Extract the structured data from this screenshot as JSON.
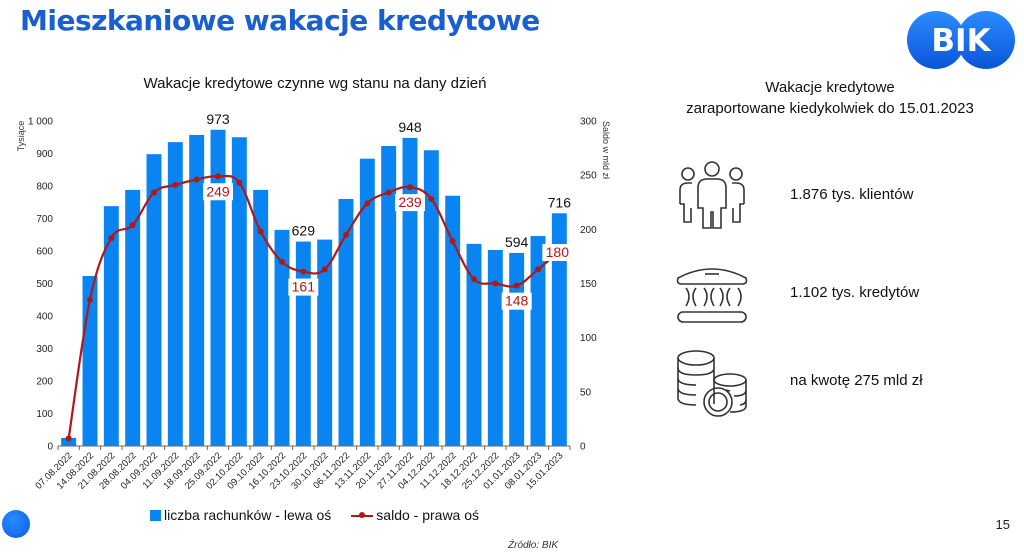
{
  "header": {
    "title": "Mieszkaniowe wakacje kredytowe",
    "logo_text": "BIK"
  },
  "chart_data": {
    "type": "bar+line",
    "title": "Wakacje kredytowe czynne wg stanu na dany dzień",
    "ylabel_left": "Tysiące",
    "ylabel_right": "Saldo w mld zł",
    "ylim_left": [
      0,
      1000
    ],
    "ylim_right": [
      0,
      300
    ],
    "yticks_left": [
      "0",
      "100",
      "200",
      "300",
      "400",
      "500",
      "600",
      "700",
      "800",
      "900",
      "1 000"
    ],
    "yticks_right": [
      "0",
      "50",
      "100",
      "150",
      "200",
      "250",
      "300"
    ],
    "categories": [
      "07.08.2022",
      "14.08.2022",
      "21.08.2022",
      "28.08.2022",
      "04.09.2022",
      "11.09.2022",
      "18.09.2022",
      "25.09.2022",
      "02.10.2022",
      "09.10.2022",
      "16.10.2022",
      "23.10.2022",
      "30.10.2022",
      "06.11.2022",
      "13.11.2022",
      "20.11.2022",
      "27.11.2022",
      "04.12.2022",
      "11.12.2022",
      "18.12.2022",
      "25.12.2022",
      "01.01.2023",
      "08.01.2023",
      "15.01.2023"
    ],
    "series": [
      {
        "name": "liczba rachunków - lewa oś",
        "type": "bar",
        "axis": "left",
        "color": "#0a84f0",
        "values": [
          25,
          523,
          738,
          788,
          898,
          935,
          957,
          973,
          950,
          788,
          665,
          629,
          635,
          760,
          884,
          923,
          948,
          910,
          770,
          622,
          603,
          594,
          646,
          716
        ]
      },
      {
        "name": "saldo - prawa oś",
        "type": "line",
        "axis": "right",
        "color": "#b01818",
        "values": [
          7,
          135,
          192,
          204,
          234,
          241,
          246,
          249,
          243,
          198,
          170,
          161,
          163,
          195,
          224,
          234,
          239,
          228,
          189,
          154,
          150,
          148,
          163,
          180
        ]
      }
    ],
    "bar_labels": [
      {
        "index": 7,
        "text": "973"
      },
      {
        "index": 11,
        "text": "629"
      },
      {
        "index": 16,
        "text": "948"
      },
      {
        "index": 21,
        "text": "594"
      },
      {
        "index": 23,
        "text": "716"
      }
    ],
    "line_labels": [
      {
        "index": 7,
        "text": "249"
      },
      {
        "index": 11,
        "text": "161"
      },
      {
        "index": 16,
        "text": "239"
      },
      {
        "index": 21,
        "text": "148"
      },
      {
        "index": 23,
        "text": "180"
      }
    ],
    "legend_position": "bottom",
    "grid": false
  },
  "summary": {
    "title_line1": "Wakacje kredytowe",
    "title_line2": "zaraportowane kiedykolwiek do 15.01.2023",
    "items": [
      {
        "icon": "people-icon",
        "text": "1.876 tys. klientów"
      },
      {
        "icon": "bank-icon",
        "text": "1.102 tys. kredytów"
      },
      {
        "icon": "coins-icon",
        "text": "na kwotę 275 mld zł"
      }
    ]
  },
  "footer": {
    "source": "Źródło: BIK",
    "page_number": "15"
  }
}
